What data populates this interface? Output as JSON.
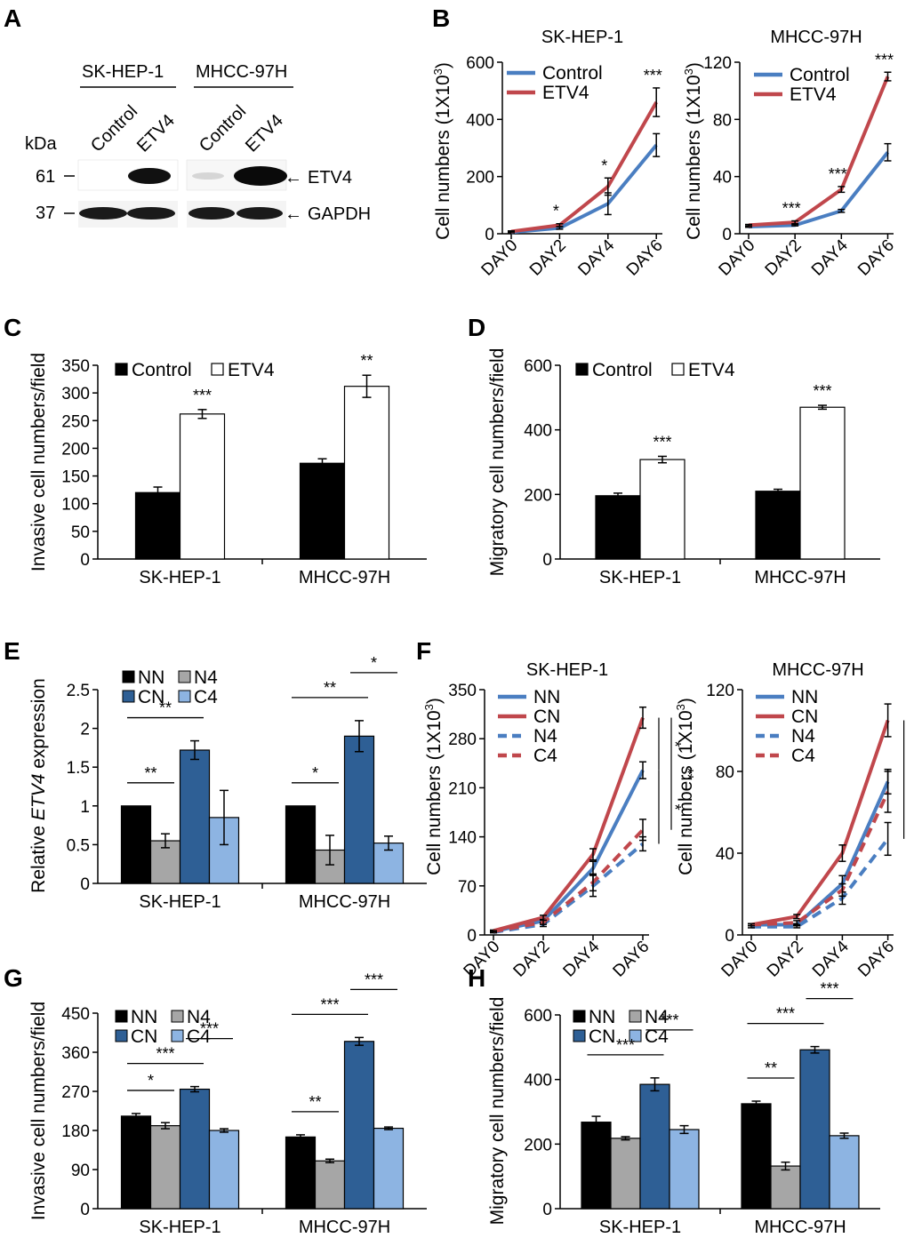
{
  "colors": {
    "black": "#000000",
    "white": "#ffffff",
    "blue_line": "#4a7ec1",
    "red_line": "#c0474c",
    "gray_bar": "#a6a6a6",
    "dark_blue_bar": "#2e5f95",
    "light_blue_bar": "#8db4e2"
  },
  "western_blot": {
    "panel_label": "A",
    "cell_lines": [
      "SK-HEP-1",
      "MHCC-97H"
    ],
    "lanes": [
      "Control",
      "ETV4",
      "Control",
      "ETV4"
    ],
    "kda_label": "kDa",
    "markers": [
      "61",
      "37"
    ],
    "proteins": [
      "ETV4",
      "GAPDH"
    ],
    "arrow": "←"
  },
  "chart_data": [
    {
      "id": "B1",
      "panel_label": "B",
      "type": "line",
      "title": "SK-HEP-1",
      "ylabel": "Cell numbers (1X10",
      "ylabel_sup": "3",
      "ylabel_close": ")",
      "x": [
        "DAY0",
        "DAY2",
        "DAY4",
        "DAY6"
      ],
      "ylim": [
        0,
        600
      ],
      "yticks": [
        0,
        200,
        400,
        600
      ],
      "series": [
        {
          "name": "Control",
          "color": "#4a7ec1",
          "dash": false,
          "values": [
            5,
            20,
            105,
            310
          ],
          "errors": [
            2,
            4,
            38,
            40
          ]
        },
        {
          "name": "ETV4",
          "color": "#c0474c",
          "dash": false,
          "values": [
            8,
            30,
            165,
            460
          ],
          "errors": [
            2,
            5,
            30,
            50
          ]
        }
      ],
      "significance": [
        {
          "label": "*",
          "x_index": 1
        },
        {
          "label": "*",
          "x_index": 2
        },
        {
          "label": "***",
          "x_index": 3
        }
      ]
    },
    {
      "id": "B2",
      "type": "line",
      "title": "MHCC-97H",
      "ylabel": "Cell numbers (1X10",
      "ylabel_sup": "3",
      "ylabel_close": ")",
      "x": [
        "DAY0",
        "DAY2",
        "DAY4",
        "DAY6"
      ],
      "ylim": [
        0,
        120
      ],
      "yticks": [
        0,
        40,
        80,
        120
      ],
      "series": [
        {
          "name": "Control",
          "color": "#4a7ec1",
          "dash": false,
          "values": [
            5,
            6,
            16,
            57
          ],
          "errors": [
            0.5,
            0.5,
            1,
            6
          ]
        },
        {
          "name": "ETV4",
          "color": "#c0474c",
          "dash": false,
          "values": [
            6,
            8,
            31,
            110
          ],
          "errors": [
            0.5,
            1,
            2,
            3
          ]
        }
      ],
      "significance": [
        {
          "label": "***",
          "x_index": 1
        },
        {
          "label": "***",
          "x_index": 2
        },
        {
          "label": "***",
          "x_index": 3
        }
      ]
    },
    {
      "id": "C",
      "panel_label": "C",
      "type": "bar",
      "ylabel": "Invasive cell numbers/field",
      "categories": [
        "SK-HEP-1",
        "MHCC-97H"
      ],
      "ylim": [
        0,
        350
      ],
      "yticks": [
        0,
        50,
        100,
        150,
        200,
        250,
        300,
        350
      ],
      "series": [
        {
          "name": "Control",
          "color": "#000000",
          "values": [
            120,
            173
          ],
          "errors": [
            10,
            8
          ]
        },
        {
          "name": "ETV4",
          "color": "#ffffff",
          "values": [
            262,
            312
          ],
          "errors": [
            8,
            20
          ]
        }
      ],
      "significance": [
        {
          "label": "***",
          "category": 0,
          "series": 1
        },
        {
          "label": "**",
          "category": 1,
          "series": 1
        }
      ]
    },
    {
      "id": "D",
      "panel_label": "D",
      "type": "bar",
      "ylabel": "Migratory cell numbers/field",
      "categories": [
        "SK-HEP-1",
        "MHCC-97H"
      ],
      "ylim": [
        0,
        600
      ],
      "yticks": [
        0,
        200,
        400,
        600
      ],
      "series": [
        {
          "name": "Control",
          "color": "#000000",
          "values": [
            196,
            210
          ],
          "errors": [
            8,
            6
          ]
        },
        {
          "name": "ETV4",
          "color": "#ffffff",
          "values": [
            308,
            470
          ],
          "errors": [
            10,
            6
          ]
        }
      ],
      "significance": [
        {
          "label": "***",
          "category": 0,
          "series": 1
        },
        {
          "label": "***",
          "category": 1,
          "series": 1
        }
      ]
    },
    {
      "id": "E",
      "panel_label": "E",
      "type": "bar",
      "ylabel_pre": "Relative ",
      "ylabel_italic": "ETV4",
      "ylabel_post": " expression",
      "categories": [
        "SK-HEP-1",
        "MHCC-97H"
      ],
      "ylim": [
        0,
        2.5
      ],
      "yticks": [
        "0",
        "0.5",
        "1",
        "1.5",
        "2",
        "2.5"
      ],
      "series": [
        {
          "name": "NN",
          "color": "#000000",
          "values": [
            1.0,
            1.0
          ],
          "errors": [
            0,
            0
          ]
        },
        {
          "name": "N4",
          "color": "#a6a6a6",
          "values": [
            0.55,
            0.43
          ],
          "errors": [
            0.09,
            0.19
          ]
        },
        {
          "name": "CN",
          "color": "#2e5f95",
          "values": [
            1.72,
            1.9
          ],
          "errors": [
            0.12,
            0.2
          ]
        },
        {
          "name": "C4",
          "color": "#8db4e2",
          "values": [
            0.85,
            0.52
          ],
          "errors": [
            0.35,
            0.09
          ]
        }
      ],
      "significance": [
        {
          "label": "**",
          "category": 0,
          "from": 0,
          "to": 1
        },
        {
          "label": "**",
          "category": 0,
          "from": 0,
          "to": 2
        },
        {
          "label": "*",
          "category": 1,
          "from": 0,
          "to": 1
        },
        {
          "label": "**",
          "category": 1,
          "from": 0,
          "to": 2
        },
        {
          "label": "*",
          "category": 1,
          "from": 2,
          "to": 3
        }
      ]
    },
    {
      "id": "F1",
      "panel_label": "F",
      "type": "line",
      "title": "SK-HEP-1",
      "ylabel": "Cell numbers (1X10",
      "ylabel_sup": "3",
      "ylabel_close": ")",
      "x": [
        "DAY0",
        "DAY2",
        "DAY4",
        "DAY6"
      ],
      "ylim": [
        0,
        350
      ],
      "yticks": [
        0,
        70,
        140,
        210,
        280,
        350
      ],
      "series": [
        {
          "name": "NN",
          "color": "#4a7ec1",
          "dash": false,
          "values": [
            5,
            20,
            95,
            235
          ],
          "errors": [
            1,
            3,
            10,
            12
          ]
        },
        {
          "name": "CN",
          "color": "#c0474c",
          "dash": false,
          "values": [
            6,
            25,
            115,
            310
          ],
          "errors": [
            1,
            3,
            8,
            15
          ]
        },
        {
          "name": "N4",
          "color": "#4a7ec1",
          "dash": true,
          "values": [
            4,
            15,
            70,
            130
          ],
          "errors": [
            1,
            3,
            15,
            10
          ]
        },
        {
          "name": "C4",
          "color": "#c0474c",
          "dash": true,
          "values": [
            5,
            18,
            75,
            150
          ],
          "errors": [
            1,
            3,
            12,
            15
          ]
        }
      ],
      "significance": [
        {
          "label": "*",
          "from_series": 1,
          "to_series": 0
        },
        {
          "label": "*",
          "from_series": 0,
          "to_series": 2
        },
        {
          "label": "**",
          "from_series": 1,
          "to_series": 3
        }
      ]
    },
    {
      "id": "F2",
      "type": "line",
      "title": "MHCC-97H",
      "ylabel": "Cell numbers (1X10",
      "ylabel_sup": "3",
      "ylabel_close": ")",
      "x": [
        "DAY0",
        "DAY2",
        "DAY4",
        "DAY6"
      ],
      "ylim": [
        0,
        120
      ],
      "yticks": [
        0,
        40,
        80,
        120
      ],
      "series": [
        {
          "name": "NN",
          "color": "#4a7ec1",
          "dash": false,
          "values": [
            5,
            5,
            25,
            75
          ],
          "errors": [
            0.5,
            0.5,
            4,
            6
          ]
        },
        {
          "name": "CN",
          "color": "#c0474c",
          "dash": false,
          "values": [
            5,
            9,
            40,
            105
          ],
          "errors": [
            0.5,
            1,
            4,
            8
          ]
        },
        {
          "name": "N4",
          "color": "#4a7ec1",
          "dash": true,
          "values": [
            4,
            4,
            18,
            47
          ],
          "errors": [
            0.5,
            0.5,
            3,
            8
          ]
        },
        {
          "name": "C4",
          "color": "#c0474c",
          "dash": true,
          "values": [
            5,
            6,
            22,
            70
          ],
          "errors": [
            0.5,
            1,
            3,
            10
          ]
        }
      ],
      "significance": [
        {
          "label": "***",
          "from_series": 1,
          "to_series": 0
        },
        {
          "label": "***",
          "from_series": 0,
          "to_series": 2
        }
      ]
    },
    {
      "id": "G",
      "panel_label": "G",
      "type": "bar",
      "ylabel": "Invasive cell numbers/field",
      "categories": [
        "SK-HEP-1",
        "MHCC-97H"
      ],
      "ylim": [
        0,
        450
      ],
      "yticks": [
        0,
        90,
        180,
        270,
        360,
        450
      ],
      "series": [
        {
          "name": "NN",
          "color": "#000000",
          "values": [
            213,
            165
          ],
          "errors": [
            6,
            5
          ]
        },
        {
          "name": "N4",
          "color": "#a6a6a6",
          "values": [
            191,
            110
          ],
          "errors": [
            7,
            4
          ]
        },
        {
          "name": "CN",
          "color": "#2e5f95",
          "values": [
            275,
            385
          ],
          "errors": [
            6,
            9
          ]
        },
        {
          "name": "C4",
          "color": "#8db4e2",
          "values": [
            180,
            185
          ],
          "errors": [
            4,
            3
          ]
        }
      ],
      "significance": [
        {
          "label": "*",
          "category": 0,
          "from": 0,
          "to": 1
        },
        {
          "label": "***",
          "category": 0,
          "from": 0,
          "to": 2
        },
        {
          "label": "***",
          "category": 0,
          "from": 2,
          "to": 3
        },
        {
          "label": "**",
          "category": 1,
          "from": 0,
          "to": 1
        },
        {
          "label": "***",
          "category": 1,
          "from": 0,
          "to": 2
        },
        {
          "label": "***",
          "category": 1,
          "from": 2,
          "to": 3
        }
      ]
    },
    {
      "id": "H",
      "panel_label": "H",
      "type": "bar",
      "ylabel": "Migratory cell numbers/field",
      "categories": [
        "SK-HEP-1",
        "MHCC-97H"
      ],
      "ylim": [
        0,
        600
      ],
      "yticks": [
        0,
        200,
        400,
        600
      ],
      "series": [
        {
          "name": "NN",
          "color": "#000000",
          "values": [
            268,
            325
          ],
          "errors": [
            18,
            8
          ]
        },
        {
          "name": "N4",
          "color": "#a6a6a6",
          "values": [
            218,
            132
          ],
          "errors": [
            5,
            12
          ]
        },
        {
          "name": "CN",
          "color": "#2e5f95",
          "values": [
            385,
            492
          ],
          "errors": [
            20,
            10
          ]
        },
        {
          "name": "C4",
          "color": "#8db4e2",
          "values": [
            245,
            226
          ],
          "errors": [
            12,
            8
          ]
        }
      ],
      "significance": [
        {
          "label": "***",
          "category": 0,
          "from": 0,
          "to": 2
        },
        {
          "label": "***",
          "category": 0,
          "from": 2,
          "to": 3
        },
        {
          "label": "**",
          "category": 1,
          "from": 0,
          "to": 1
        },
        {
          "label": "***",
          "category": 1,
          "from": 0,
          "to": 2
        },
        {
          "label": "***",
          "category": 1,
          "from": 2,
          "to": 3
        }
      ]
    }
  ]
}
